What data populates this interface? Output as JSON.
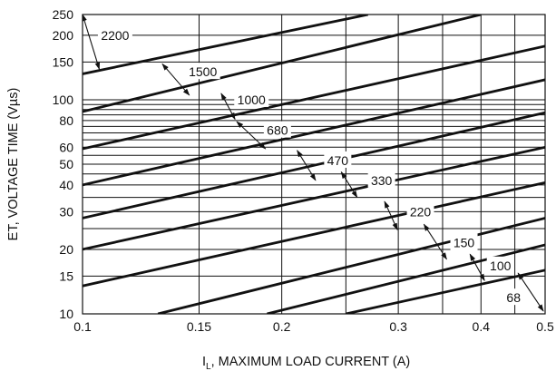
{
  "chart_data": {
    "type": "line",
    "xlabel_main": "I",
    "xlabel_sub": "L",
    "xlabel_rest": ", MAXIMUM LOAD CURRENT (A)",
    "ylabel": "ET, VOLTAGE TIME (Vµs)",
    "x_scale": "log",
    "y_scale": "log",
    "xlim": [
      0.1,
      0.5
    ],
    "ylim": [
      10,
      250
    ],
    "x_ticks": [
      {
        "v": 0.1,
        "label": "0.1"
      },
      {
        "v": 0.15,
        "label": "0.15"
      },
      {
        "v": 0.2,
        "label": "0.2"
      },
      {
        "v": 0.3,
        "label": "0.3"
      },
      {
        "v": 0.4,
        "label": "0.4"
      },
      {
        "v": 0.5,
        "label": "0.5"
      }
    ],
    "x_grid": [
      0.1,
      0.15,
      0.2,
      0.25,
      0.3,
      0.35,
      0.4,
      0.45,
      0.5
    ],
    "y_ticks": [
      {
        "v": 10,
        "label": "10"
      },
      {
        "v": 15,
        "label": "15"
      },
      {
        "v": 20,
        "label": "20"
      },
      {
        "v": 30,
        "label": "30"
      },
      {
        "v": 40,
        "label": "40"
      },
      {
        "v": 50,
        "label": "50"
      },
      {
        "v": 60,
        "label": "60"
      },
      {
        "v": 80,
        "label": "80"
      },
      {
        "v": 100,
        "label": "100"
      },
      {
        "v": 150,
        "label": "150"
      },
      {
        "v": 200,
        "label": "200"
      },
      {
        "v": 250,
        "label": "250"
      }
    ],
    "y_grid": [
      10,
      15,
      20,
      25,
      30,
      35,
      40,
      45,
      50,
      55,
      60,
      65,
      70,
      75,
      80,
      85,
      90,
      95,
      100,
      150,
      200,
      250
    ],
    "grid": true,
    "series": [
      {
        "name": "2200",
        "points": [
          [
            0.1,
            132
          ],
          [
            0.27,
            250
          ]
        ]
      },
      {
        "name": "1500",
        "points": [
          [
            0.1,
            88
          ],
          [
            0.4,
            250
          ]
        ]
      },
      {
        "name": "1000",
        "points": [
          [
            0.1,
            59
          ],
          [
            0.5,
            178
          ]
        ]
      },
      {
        "name": "680",
        "points": [
          [
            0.1,
            40
          ],
          [
            0.5,
            124
          ]
        ]
      },
      {
        "name": "470",
        "points": [
          [
            0.1,
            28
          ],
          [
            0.5,
            87
          ]
        ]
      },
      {
        "name": "330",
        "points": [
          [
            0.1,
            20
          ],
          [
            0.5,
            60
          ]
        ]
      },
      {
        "name": "220",
        "points": [
          [
            0.1,
            13.5
          ],
          [
            0.5,
            41
          ]
        ]
      },
      {
        "name": "150",
        "points": [
          [
            0.13,
            10
          ],
          [
            0.5,
            28
          ]
        ]
      },
      {
        "name": "100",
        "points": [
          [
            0.19,
            10
          ],
          [
            0.5,
            21
          ]
        ]
      },
      {
        "name": "68",
        "points": [
          [
            0.25,
            10
          ],
          [
            0.5,
            16
          ]
        ]
      }
    ],
    "annotations": [
      {
        "text": "2200",
        "arrow": [
          [
            0.1,
            250
          ],
          [
            0.106,
            139
          ]
        ],
        "pos": [
          0.112,
          200
        ]
      },
      {
        "text": "1500",
        "arrow": [
          [
            0.132,
            147
          ],
          [
            0.145,
            105
          ]
        ],
        "pos": [
          0.152,
          135
        ]
      },
      {
        "text": "1000",
        "arrow": [
          [
            0.162,
            107
          ],
          [
            0.17,
            81
          ]
        ],
        "pos": [
          0.18,
          100
        ]
      },
      {
        "text": "680",
        "arrow": [
          [
            0.171,
            79
          ],
          [
            0.189,
            59
          ]
        ],
        "pos": [
          0.197,
          72
        ]
      },
      {
        "text": "470",
        "arrow": [
          [
            0.211,
            58
          ],
          [
            0.225,
            42
          ]
        ],
        "pos": [
          0.243,
          52
        ]
      },
      {
        "text": "330",
        "arrow": [
          [
            0.246,
            46
          ],
          [
            0.26,
            35
          ]
        ],
        "pos": [
          0.283,
          42
        ]
      },
      {
        "text": "220",
        "arrow": [
          [
            0.286,
            33.5
          ],
          [
            0.299,
            24.7
          ]
        ],
        "pos": [
          0.324,
          30
        ]
      },
      {
        "text": "150",
        "arrow": [
          [
            0.328,
            26.2
          ],
          [
            0.355,
            18
          ]
        ],
        "pos": [
          0.377,
          21.5
        ]
      },
      {
        "text": "100",
        "arrow": [
          [
            0.385,
            19
          ],
          [
            0.405,
            14.3
          ]
        ],
        "pos": [
          0.428,
          16.8
        ]
      },
      {
        "text": "68",
        "arrow": [
          [
            0.455,
            15.5
          ],
          [
            0.497,
            10.3
          ]
        ],
        "pos": [
          0.448,
          11.9
        ]
      }
    ]
  }
}
